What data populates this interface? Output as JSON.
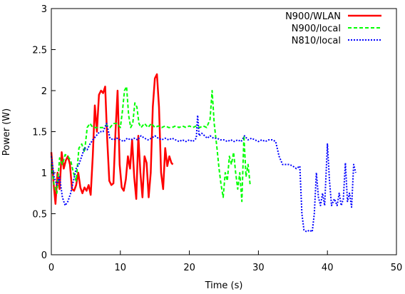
{
  "chart_data": {
    "type": "line",
    "xlabel": "Time (s)",
    "ylabel": "Power (W)",
    "xlim": [
      0,
      50
    ],
    "ylim": [
      0,
      3
    ],
    "xticks": [
      "0",
      "10",
      "20",
      "30",
      "40",
      "50"
    ],
    "yticks": [
      "0",
      "0.5",
      "1",
      "1.5",
      "2",
      "2.5",
      "3"
    ],
    "legend_position": "top-right",
    "grid": false,
    "series": [
      {
        "name": "N900/WLAN",
        "color": "#ff0000",
        "style": "solid",
        "points": [
          [
            0.0,
            1.25
          ],
          [
            0.3,
            0.9
          ],
          [
            0.6,
            0.62
          ],
          [
            0.9,
            1.0
          ],
          [
            1.2,
            0.8
          ],
          [
            1.5,
            1.25
          ],
          [
            1.8,
            1.05
          ],
          [
            2.1,
            1.15
          ],
          [
            2.4,
            1.2
          ],
          [
            2.7,
            1.1
          ],
          [
            3.0,
            0.8
          ],
          [
            3.3,
            0.78
          ],
          [
            3.6,
            0.85
          ],
          [
            3.9,
            1.0
          ],
          [
            4.2,
            0.82
          ],
          [
            4.5,
            0.75
          ],
          [
            4.8,
            0.82
          ],
          [
            5.1,
            0.78
          ],
          [
            5.4,
            0.85
          ],
          [
            5.7,
            0.73
          ],
          [
            6.0,
            1.2
          ],
          [
            6.3,
            1.82
          ],
          [
            6.6,
            1.5
          ],
          [
            6.9,
            1.95
          ],
          [
            7.2,
            2.0
          ],
          [
            7.5,
            1.97
          ],
          [
            7.8,
            2.05
          ],
          [
            8.1,
            1.4
          ],
          [
            8.4,
            0.9
          ],
          [
            8.7,
            0.85
          ],
          [
            9.0,
            0.87
          ],
          [
            9.3,
            1.5
          ],
          [
            9.6,
            2.0
          ],
          [
            9.9,
            1.1
          ],
          [
            10.2,
            0.82
          ],
          [
            10.5,
            0.78
          ],
          [
            10.8,
            0.92
          ],
          [
            11.1,
            1.2
          ],
          [
            11.4,
            1.05
          ],
          [
            11.7,
            1.4
          ],
          [
            12.0,
            0.95
          ],
          [
            12.3,
            0.68
          ],
          [
            12.6,
            1.45
          ],
          [
            12.9,
            1.0
          ],
          [
            13.2,
            0.7
          ],
          [
            13.5,
            1.2
          ],
          [
            13.8,
            1.12
          ],
          [
            14.1,
            0.7
          ],
          [
            14.4,
            1.0
          ],
          [
            14.7,
            1.8
          ],
          [
            15.0,
            2.15
          ],
          [
            15.3,
            2.2
          ],
          [
            15.6,
            1.8
          ],
          [
            15.9,
            1.0
          ],
          [
            16.2,
            0.8
          ],
          [
            16.5,
            1.3
          ],
          [
            16.8,
            1.08
          ],
          [
            17.1,
            1.2
          ],
          [
            17.4,
            1.12
          ],
          [
            17.6,
            1.1
          ]
        ]
      },
      {
        "name": "N900/local",
        "color": "#00ff00",
        "style": "dashed",
        "points": [
          [
            0.0,
            1.1
          ],
          [
            0.4,
            0.85
          ],
          [
            0.8,
            0.75
          ],
          [
            1.2,
            1.18
          ],
          [
            1.6,
            1.1
          ],
          [
            2.0,
            1.22
          ],
          [
            2.4,
            1.2
          ],
          [
            2.8,
            1.15
          ],
          [
            3.2,
            1.0
          ],
          [
            3.6,
            0.9
          ],
          [
            4.0,
            1.3
          ],
          [
            4.4,
            1.35
          ],
          [
            4.8,
            1.25
          ],
          [
            5.2,
            1.55
          ],
          [
            5.6,
            1.6
          ],
          [
            6.0,
            1.55
          ],
          [
            6.5,
            1.55
          ],
          [
            7.0,
            1.55
          ],
          [
            7.5,
            1.55
          ],
          [
            8.0,
            1.58
          ],
          [
            8.5,
            1.55
          ],
          [
            9.0,
            1.6
          ],
          [
            9.5,
            1.6
          ],
          [
            10.0,
            1.55
          ],
          [
            10.3,
            1.75
          ],
          [
            10.6,
            2.0
          ],
          [
            10.9,
            2.05
          ],
          [
            11.2,
            1.7
          ],
          [
            11.5,
            1.55
          ],
          [
            11.8,
            1.6
          ],
          [
            12.1,
            1.85
          ],
          [
            12.4,
            1.8
          ],
          [
            12.7,
            1.6
          ],
          [
            13.0,
            1.55
          ],
          [
            13.5,
            1.6
          ],
          [
            14.0,
            1.55
          ],
          [
            14.5,
            1.6
          ],
          [
            15.0,
            1.55
          ],
          [
            15.5,
            1.57
          ],
          [
            16.0,
            1.55
          ],
          [
            16.5,
            1.57
          ],
          [
            17.0,
            1.55
          ],
          [
            17.5,
            1.55
          ],
          [
            18.0,
            1.57
          ],
          [
            18.5,
            1.55
          ],
          [
            19.0,
            1.57
          ],
          [
            19.5,
            1.55
          ],
          [
            20.0,
            1.57
          ],
          [
            20.5,
            1.55
          ],
          [
            21.0,
            1.57
          ],
          [
            21.5,
            1.55
          ],
          [
            22.0,
            1.57
          ],
          [
            22.5,
            1.55
          ],
          [
            23.0,
            1.65
          ],
          [
            23.3,
            2.0
          ],
          [
            23.6,
            1.6
          ],
          [
            24.0,
            1.3
          ],
          [
            24.3,
            1.05
          ],
          [
            24.6,
            0.85
          ],
          [
            24.9,
            0.7
          ],
          [
            25.2,
            1.0
          ],
          [
            25.5,
            0.9
          ],
          [
            25.8,
            1.2
          ],
          [
            26.1,
            1.1
          ],
          [
            26.4,
            1.25
          ],
          [
            26.7,
            1.0
          ],
          [
            27.0,
            0.8
          ],
          [
            27.3,
            1.0
          ],
          [
            27.6,
            0.65
          ],
          [
            27.9,
            1.45
          ],
          [
            28.2,
            0.95
          ],
          [
            28.5,
            1.1
          ],
          [
            28.8,
            0.85
          ]
        ]
      },
      {
        "name": "N810/local",
        "color": "#0000ff",
        "style": "dotted",
        "points": [
          [
            0.0,
            1.2
          ],
          [
            0.4,
            0.95
          ],
          [
            0.8,
            0.85
          ],
          [
            1.2,
            0.95
          ],
          [
            1.6,
            0.7
          ],
          [
            2.0,
            0.6
          ],
          [
            2.4,
            0.65
          ],
          [
            2.8,
            0.75
          ],
          [
            3.2,
            0.9
          ],
          [
            3.6,
            1.05
          ],
          [
            4.0,
            1.1
          ],
          [
            4.4,
            1.2
          ],
          [
            4.8,
            1.3
          ],
          [
            5.2,
            1.28
          ],
          [
            5.6,
            1.35
          ],
          [
            6.0,
            1.4
          ],
          [
            6.5,
            1.45
          ],
          [
            7.0,
            1.5
          ],
          [
            7.5,
            1.5
          ],
          [
            8.0,
            1.6
          ],
          [
            8.5,
            1.42
          ],
          [
            9.0,
            1.4
          ],
          [
            9.5,
            1.42
          ],
          [
            10.0,
            1.4
          ],
          [
            10.5,
            1.38
          ],
          [
            11.0,
            1.42
          ],
          [
            11.5,
            1.4
          ],
          [
            12.0,
            1.42
          ],
          [
            12.5,
            1.4
          ],
          [
            13.0,
            1.45
          ],
          [
            13.5,
            1.42
          ],
          [
            14.0,
            1.4
          ],
          [
            14.5,
            1.42
          ],
          [
            15.0,
            1.45
          ],
          [
            15.5,
            1.42
          ],
          [
            16.0,
            1.4
          ],
          [
            16.5,
            1.42
          ],
          [
            17.0,
            1.4
          ],
          [
            17.5,
            1.42
          ],
          [
            18.0,
            1.4
          ],
          [
            18.5,
            1.38
          ],
          [
            19.0,
            1.4
          ],
          [
            19.5,
            1.38
          ],
          [
            20.0,
            1.4
          ],
          [
            20.5,
            1.38
          ],
          [
            21.0,
            1.42
          ],
          [
            21.2,
            1.7
          ],
          [
            21.4,
            1.45
          ],
          [
            21.8,
            1.48
          ],
          [
            22.2,
            1.45
          ],
          [
            22.6,
            1.42
          ],
          [
            23.0,
            1.45
          ],
          [
            23.5,
            1.42
          ],
          [
            24.0,
            1.42
          ],
          [
            24.5,
            1.4
          ],
          [
            25.0,
            1.4
          ],
          [
            25.5,
            1.38
          ],
          [
            26.0,
            1.4
          ],
          [
            26.5,
            1.38
          ],
          [
            27.0,
            1.4
          ],
          [
            27.5,
            1.38
          ],
          [
            28.0,
            1.45
          ],
          [
            28.5,
            1.4
          ],
          [
            29.0,
            1.42
          ],
          [
            29.5,
            1.4
          ],
          [
            30.0,
            1.38
          ],
          [
            30.5,
            1.4
          ],
          [
            31.0,
            1.38
          ],
          [
            31.5,
            1.4
          ],
          [
            32.0,
            1.4
          ],
          [
            32.5,
            1.38
          ],
          [
            33.0,
            1.2
          ],
          [
            33.5,
            1.1
          ],
          [
            34.0,
            1.1
          ],
          [
            34.5,
            1.1
          ],
          [
            35.0,
            1.08
          ],
          [
            35.5,
            1.05
          ],
          [
            36.0,
            1.08
          ],
          [
            36.3,
            0.5
          ],
          [
            36.6,
            0.3
          ],
          [
            37.0,
            0.28
          ],
          [
            37.4,
            0.3
          ],
          [
            37.8,
            0.28
          ],
          [
            38.1,
            0.5
          ],
          [
            38.4,
            1.0
          ],
          [
            38.7,
            0.7
          ],
          [
            39.0,
            0.6
          ],
          [
            39.3,
            0.75
          ],
          [
            39.6,
            0.6
          ],
          [
            40.0,
            1.35
          ],
          [
            40.3,
            0.9
          ],
          [
            40.6,
            0.6
          ],
          [
            41.0,
            0.68
          ],
          [
            41.4,
            0.6
          ],
          [
            41.7,
            0.75
          ],
          [
            42.0,
            0.6
          ],
          [
            42.3,
            0.68
          ],
          [
            42.6,
            1.12
          ],
          [
            42.9,
            0.65
          ],
          [
            43.2,
            0.75
          ],
          [
            43.5,
            0.58
          ],
          [
            43.8,
            1.1
          ],
          [
            44.1,
            1.0
          ]
        ]
      }
    ]
  }
}
